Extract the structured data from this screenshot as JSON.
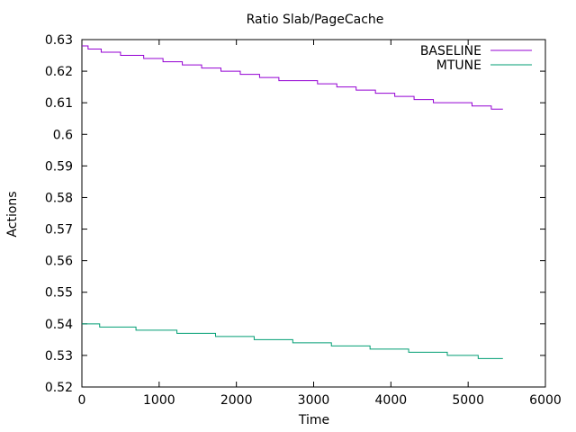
{
  "chart_data": {
    "type": "line",
    "title": "Ratio Slab/PageCache",
    "xlabel": "Time",
    "ylabel": "Actions",
    "xlim": [
      0,
      6000
    ],
    "ylim": [
      0.52,
      0.63
    ],
    "xticks": [
      0,
      1000,
      2000,
      3000,
      4000,
      5000,
      6000
    ],
    "yticks": [
      0.52,
      0.53,
      0.54,
      0.55,
      0.56,
      0.57,
      0.58,
      0.59,
      0.6,
      0.61,
      0.62,
      0.63
    ],
    "ytick_labels": [
      "0.52",
      "0.53",
      "0.54",
      "0.55",
      "0.56",
      "0.57",
      "0.58",
      "0.59",
      "0.6",
      "0.61",
      "0.62",
      "0.63"
    ],
    "grid": false,
    "legend_position": "top-right",
    "line_style": "steps",
    "series": [
      {
        "name": "BASELINE",
        "color": "#9400d3",
        "x": [
          0,
          80,
          250,
          500,
          800,
          1050,
          1300,
          1550,
          1800,
          2050,
          2300,
          2550,
          2800,
          3050,
          3300,
          3550,
          3800,
          4050,
          4300,
          4550,
          4800,
          5050,
          5300,
          5450
        ],
        "y": [
          0.628,
          0.627,
          0.626,
          0.625,
          0.624,
          0.623,
          0.622,
          0.621,
          0.62,
          0.619,
          0.618,
          0.617,
          0.617,
          0.616,
          0.615,
          0.614,
          0.613,
          0.612,
          0.611,
          0.61,
          0.61,
          0.609,
          0.608,
          0.608
        ]
      },
      {
        "name": "MTUNE",
        "color": "#009e73",
        "x": [
          0,
          230,
          700,
          1230,
          1730,
          2230,
          2730,
          3230,
          3730,
          4230,
          4730,
          5130,
          5450
        ],
        "y": [
          0.54,
          0.539,
          0.538,
          0.537,
          0.536,
          0.535,
          0.534,
          0.533,
          0.532,
          0.531,
          0.53,
          0.529,
          0.529
        ]
      }
    ]
  }
}
